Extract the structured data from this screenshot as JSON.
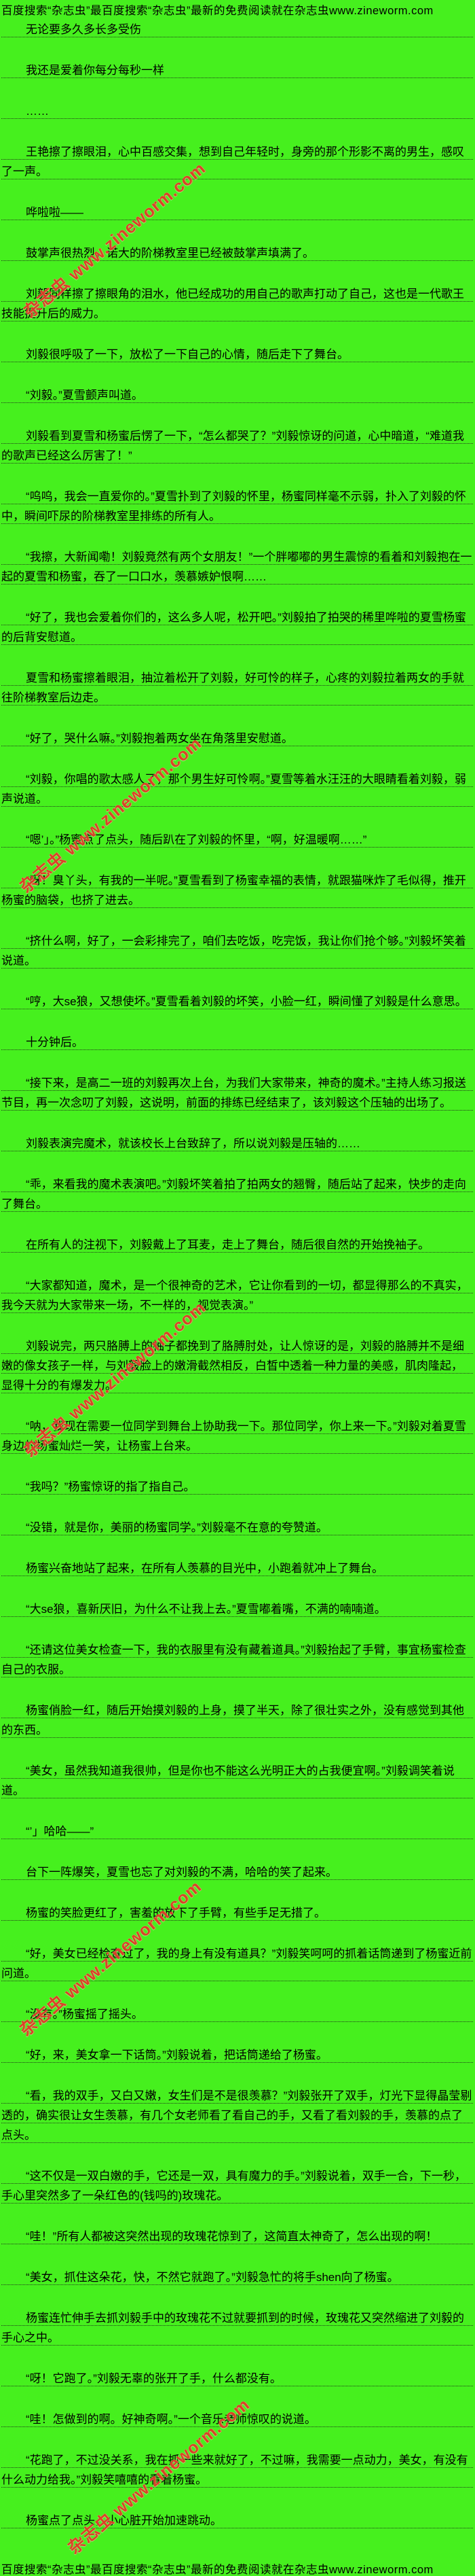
{
  "page": {
    "header": "百度搜索“杂志虫”最百度搜索“杂志虫”最新的免费阅读就在杂志虫www.zineworm.com",
    "footer": "百度搜索“杂志虫”最百度搜索“杂志虫”最新的免费阅读就在杂志虫www.zineworm.com",
    "watermark": "杂志虫 www.zineworm.com",
    "colors": {
      "background": "#46f01e",
      "text": "#000000",
      "watermark_red": "#e23a28",
      "underline": "#191919"
    },
    "paragraphs": [
      "无论要多久多长多受伤",
      "我还是爱着你每分每秒一样",
      "……",
      "王艳擦了擦眼泪，心中百感交集，想到自己年轻时，身旁的那个形影不离的男生，感叹了一声。",
      "哗啦啦——",
      "鼓掌声很热烈，诺大的阶梯教室里已经被鼓掌声填满了。",
      "刘毅同样擦了擦眼角的泪水，他已经成功的用自己的歌声打动了自己，这也是一代歌王技能提升后的威力。",
      "刘毅很呼吸了一下，放松了一下自己的心情，随后走下了舞台。",
      "“刘毅。”夏雪颤声叫道。",
      "刘毅看到夏雪和杨蜜后愣了一下，“怎么都哭了？”刘毅惊讶的问道，心中暗道，“难道我的歌声已经这么厉害了！”",
      "“呜呜，我会一直爱你的。”夏雪扑到了刘毅的怀里，杨蜜同样毫不示弱，扑入了刘毅的怀中，瞬间吓尿的阶梯教室里排练的所有人。",
      "“我擦，大新闻嘞！刘毅竟然有两个女朋友！”一个胖嘟嘟的男生震惊的看着和刘毅抱在一起的夏雪和杨蜜，吞了一口口水，羡慕嫉妒恨啊……",
      "“好了，我也会爱着你们的，这么多人呢，松开吧。”刘毅拍了拍哭的稀里哗啦的夏雪杨蜜的后背安慰道。",
      "夏雪和杨蜜擦着眼泪，抽泣着松开了刘毅，好可怜的样子，心疼的刘毅拉着两女的手就往阶梯教室后边走。",
      "“好了，哭什么嘛。”刘毅抱着两女坐在角落里安慰道。",
      "“刘毅，你唱的歌太感人了，那个男生好可怜啊。”夏雪等着水汪汪的大眼睛看着刘毅，弱声说道。",
      "“嗯’」。”杨蜜点了点头，随后趴在了刘毅的怀里，“啊，好温暖啊……”",
      "“呀！臭丫头，有我的一半呢。”夏雪看到了杨蜜幸福的表情，就跟猫咪炸了毛似得，推开杨蜜的脑袋，也挤了进去。",
      "“挤什么啊，好了，一会彩排完了，咱们去吃饭，吃完饭，我让你们抢个够。”刘毅坏笑着说道。",
      "“哼，大se狼，又想使坏。”夏雪看着刘毅的坏笑，小脸一红，瞬间懂了刘毅是什么意思。",
      "十分钟后。",
      "“接下来，是高二一班的刘毅再次上台，为我们大家带来，神奇的魔术。”主持人练习报送节目，再一次念叨了刘毅，这说明，前面的排练已经结束了，该刘毅这个压轴的出场了。",
      "刘毅表演完魔术，就该校长上台致辞了，所以说刘毅是压轴的……",
      "“乖，来看我的魔术表演吧。”刘毅坏笑着拍了拍两女的翘臀，随后站了起来，快步的走向了舞台。",
      "在所有人的注视下，刘毅戴上了耳麦，走上了舞台，随后很自然的开始挽袖子。",
      "“大家都知道，魔术，是一个很神奇的艺术，它让你看到的一切，都显得那么的不真实，我今天就为大家带来一场，不一样的，视觉表演。”",
      "刘毅说完，两只胳膊上的袖子都挽到了胳膊肘处，让人惊讶的是，刘毅的胳膊并不是细嫩的像女孩子一样，与刘毅脸上的嫩滑截然相反，白皙中透着一种力量的美感，肌肉隆起，显得十分的有爆发力。",
      "“呐，我现在需要一位同学到舞台上协助我一下。那位同学，你上来一下。”刘毅对着夏雪身边的杨蜜灿烂一笑，让杨蜜上台来。",
      "“我吗？”杨蜜惊讶的指了指自己。",
      "“没错，就是你，美丽的杨蜜同学。”刘毅毫不在意的夸赞道。",
      "杨蜜兴奋地站了起来，在所有人羡慕的目光中，小跑着就冲上了舞台。",
      "“大se狼，喜新厌旧，为什么不让我上去。”夏雪嘟着嘴，不满的喃喃道。",
      "“还请这位美女检查一下，我的衣服里有没有藏着道具。”刘毅抬起了手臂，事宜杨蜜检查自己的衣服。",
      "杨蜜俏脸一红，随后开始摸刘毅的上身，摸了半天，除了很壮实之外，没有感觉到其他的东西。",
      "“美女，虽然我知道我很帅，但是你也不能这么光明正大的占我便宜啊。”刘毅调笑着说道。",
      "“’」哈哈——”",
      "台下一阵爆笑，夏雪也忘了对刘毅的不满，哈哈的笑了起来。",
      "杨蜜的笑脸更红了，害羞的放下了手臂，有些手足无措了。",
      "“好，美女已经检查过了，我的身上有没有道具？”刘毅笑呵呵的抓着话筒递到了杨蜜近前问道。",
      "“没有。”杨蜜摇了摇头。",
      "“好，来，美女拿一下话筒。”刘毅说着，把话筒递给了杨蜜。",
      "“看，我的双手，又白又嫩，女生们是不是很羡慕？”刘毅张开了双手，灯光下显得晶莹剔透的，确实很让女生羡慕，有几个女老师看了看自己的手，又看了看刘毅的手，羡慕的点了点头。",
      "“这不仅是一双白嫩的手，它还是一双，具有魔力的手。”刘毅说着，双手一合，下一秒，手心里突然多了一朵红色的(钱吗的)玫瑰花。",
      "“哇！”所有人都被这突然出现的玫瑰花惊到了，这简直太神奇了，怎么出现的啊！",
      "“美女，抓住这朵花，快，不然它就跑了。”刘毅急忙的将手shen向了杨蜜。",
      "杨蜜连忙伸手去抓刘毅手中的玫瑰花不过就要抓到的时候，玫瑰花又突然缩进了刘毅的手心之中。",
      "“呀！它跑了。”刘毅无辜的张开了手，什么都没有。",
      "“哇！怎做到的啊。好神奇啊。”一个音乐老师惊叹的说道。",
      "“花跑了，不过没关系，我在抓一些来就好了，不过嘛，我需要一点动力，美女，有没有什么动力给我。”刘毅笑嘻嘻的看着杨蜜。",
      "杨蜜点了点头，小心脏开始加速跳动。"
    ]
  }
}
